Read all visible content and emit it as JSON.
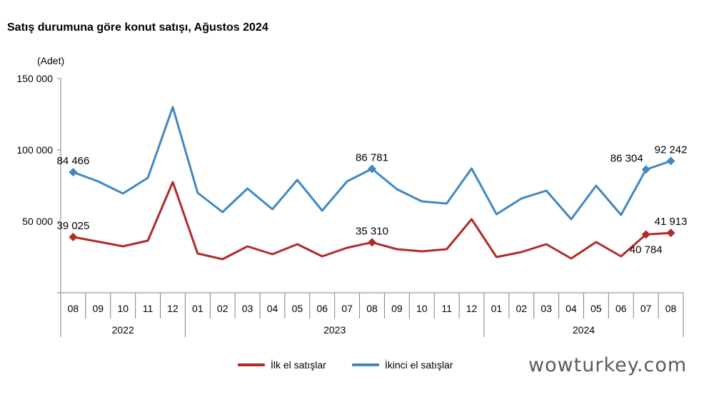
{
  "chart_data": {
    "type": "line",
    "title": "Satış durumuna göre konut satışı, Ağustos 2024",
    "ylabel": "(Adet)",
    "ylim": [
      0,
      150000
    ],
    "yticks": [
      50000,
      100000,
      150000
    ],
    "ytick_labels": [
      "50 000",
      "100 000",
      "150 000"
    ],
    "categories": [
      "08",
      "09",
      "10",
      "11",
      "12",
      "01",
      "02",
      "03",
      "04",
      "05",
      "06",
      "07",
      "08",
      "09",
      "10",
      "11",
      "12",
      "01",
      "02",
      "03",
      "04",
      "05",
      "06",
      "07",
      "08"
    ],
    "years": [
      {
        "label": "2022",
        "start": 0,
        "end": 4
      },
      {
        "label": "2023",
        "start": 5,
        "end": 16
      },
      {
        "label": "2024",
        "start": 17,
        "end": 24
      }
    ],
    "series": [
      {
        "name": "İlk el satışlar",
        "color": "#b22a2a",
        "values": [
          39025,
          35800,
          32500,
          36500,
          77500,
          27500,
          23500,
          32500,
          27000,
          34000,
          25500,
          31500,
          35310,
          30500,
          29000,
          30500,
          51500,
          25000,
          28500,
          34000,
          24000,
          35500,
          25500,
          40784,
          41913
        ],
        "markers": [
          0,
          12,
          23,
          24
        ],
        "labels": [
          {
            "index": 0,
            "text": "39 025",
            "pos": "above"
          },
          {
            "index": 12,
            "text": "35 310",
            "pos": "above"
          },
          {
            "index": 23,
            "text": "40 784",
            "pos": "below"
          },
          {
            "index": 24,
            "text": "41 913",
            "pos": "above"
          }
        ]
      },
      {
        "name": "İkinci el satışlar",
        "color": "#3f88c4",
        "values": [
          84466,
          78000,
          69500,
          80500,
          130000,
          70000,
          56500,
          73000,
          58500,
          79000,
          57500,
          78000,
          86781,
          72500,
          64000,
          62500,
          87000,
          55000,
          66000,
          71500,
          51500,
          75000,
          54500,
          86304,
          92242
        ],
        "markers": [
          0,
          12,
          23,
          24
        ],
        "labels": [
          {
            "index": 0,
            "text": "84 466",
            "pos": "above"
          },
          {
            "index": 12,
            "text": "86 781",
            "pos": "above"
          },
          {
            "index": 23,
            "text": "86 304",
            "pos": "above-left"
          },
          {
            "index": 24,
            "text": "92 242",
            "pos": "above"
          }
        ]
      }
    ],
    "legend_position": "bottom"
  },
  "watermark": "wowturkey.com"
}
